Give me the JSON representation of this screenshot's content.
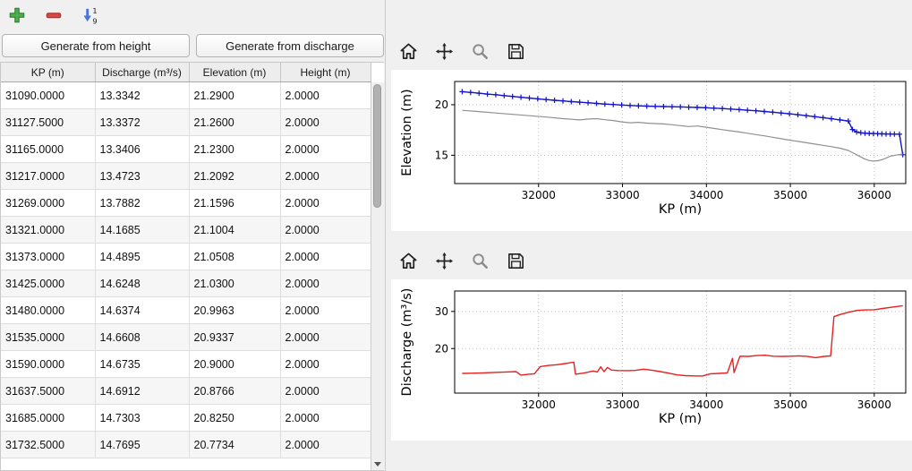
{
  "colors": {
    "window_bg": "#f0f0f0",
    "elevation_line": "#1414c8",
    "bed_line": "#909090",
    "discharge_line": "#e82020",
    "add_icon_green": "#4caf4c",
    "remove_icon_red": "#d84848",
    "sort_icon_blue": "#4a72d8"
  },
  "left_toolbar": {
    "icons": [
      "add-icon",
      "remove-icon",
      "sort-numeric-icon"
    ],
    "sort_top_digit": "1",
    "sort_bottom_digit": "9"
  },
  "buttons": {
    "generate_from_height": "Generate from height",
    "generate_from_discharge": "Generate from discharge"
  },
  "table": {
    "columns": [
      "KP (m)",
      "Discharge (m³/s)",
      "Elevation (m)",
      "Height (m)"
    ],
    "rows": [
      [
        "31090.0000",
        "13.3342",
        "21.2900",
        "2.0000"
      ],
      [
        "31127.5000",
        "13.3372",
        "21.2600",
        "2.0000"
      ],
      [
        "31165.0000",
        "13.3406",
        "21.2300",
        "2.0000"
      ],
      [
        "31217.0000",
        "13.4723",
        "21.2092",
        "2.0000"
      ],
      [
        "31269.0000",
        "13.7882",
        "21.1596",
        "2.0000"
      ],
      [
        "31321.0000",
        "14.1685",
        "21.1004",
        "2.0000"
      ],
      [
        "31373.0000",
        "14.4895",
        "21.0508",
        "2.0000"
      ],
      [
        "31425.0000",
        "14.6248",
        "21.0300",
        "2.0000"
      ],
      [
        "31480.0000",
        "14.6374",
        "20.9963",
        "2.0000"
      ],
      [
        "31535.0000",
        "14.6608",
        "20.9337",
        "2.0000"
      ],
      [
        "31590.0000",
        "14.6735",
        "20.9000",
        "2.0000"
      ],
      [
        "31637.5000",
        "14.6912",
        "20.8766",
        "2.0000"
      ],
      [
        "31685.0000",
        "14.7303",
        "20.8250",
        "2.0000"
      ],
      [
        "31732.5000",
        "14.7695",
        "20.7734",
        "2.0000"
      ]
    ]
  },
  "mpl_toolbar": {
    "icons": [
      "home-icon",
      "pan-icon",
      "zoom-icon",
      "save-icon"
    ]
  },
  "chart_data": [
    {
      "type": "line",
      "title": "",
      "xlabel": "KP (m)",
      "ylabel": "Elevation (m)",
      "xlim": [
        31000,
        36375
      ],
      "ylim": [
        12.2,
        22.3
      ],
      "xticks": [
        32000,
        33000,
        34000,
        35000,
        36000
      ],
      "yticks": [
        15,
        20
      ],
      "grid": true,
      "legend": "none",
      "series": [
        {
          "name": "water-surface-elevation",
          "color": "#1414c8",
          "marker": "+",
          "line_width": 1.4,
          "points": [
            [
              31090,
              21.29
            ],
            [
              31190,
              21.22
            ],
            [
              31290,
              21.14
            ],
            [
              31390,
              21.05
            ],
            [
              31490,
              20.99
            ],
            [
              31590,
              20.9
            ],
            [
              31690,
              20.82
            ],
            [
              31790,
              20.74
            ],
            [
              31890,
              20.66
            ],
            [
              31990,
              20.58
            ],
            [
              32090,
              20.51
            ],
            [
              32190,
              20.44
            ],
            [
              32290,
              20.38
            ],
            [
              32390,
              20.31
            ],
            [
              32490,
              20.25
            ],
            [
              32590,
              20.19
            ],
            [
              32690,
              20.13
            ],
            [
              32790,
              20.07
            ],
            [
              32890,
              20.02
            ],
            [
              32990,
              19.97
            ],
            [
              33090,
              19.93
            ],
            [
              33190,
              19.89
            ],
            [
              33290,
              19.86
            ],
            [
              33390,
              19.84
            ],
            [
              33490,
              19.82
            ],
            [
              33590,
              19.8
            ],
            [
              33690,
              19.78
            ],
            [
              33790,
              19.76
            ],
            [
              33890,
              19.73
            ],
            [
              33990,
              19.7
            ],
            [
              34090,
              19.66
            ],
            [
              34190,
              19.62
            ],
            [
              34290,
              19.57
            ],
            [
              34390,
              19.52
            ],
            [
              34490,
              19.46
            ],
            [
              34590,
              19.4
            ],
            [
              34690,
              19.33
            ],
            [
              34790,
              19.26
            ],
            [
              34890,
              19.18
            ],
            [
              34990,
              19.1
            ],
            [
              35090,
              19.01
            ],
            [
              35190,
              18.92
            ],
            [
              35290,
              18.82
            ],
            [
              35390,
              18.72
            ],
            [
              35490,
              18.61
            ],
            [
              35590,
              18.5
            ],
            [
              35690,
              18.39
            ],
            [
              35740,
              17.55
            ],
            [
              35790,
              17.3
            ],
            [
              35840,
              17.22
            ],
            [
              35890,
              17.18
            ],
            [
              35940,
              17.16
            ],
            [
              35990,
              17.14
            ],
            [
              36040,
              17.13
            ],
            [
              36090,
              17.12
            ],
            [
              36140,
              17.11
            ],
            [
              36190,
              17.1
            ],
            [
              36240,
              17.09
            ],
            [
              36300,
              17.08
            ],
            [
              36340,
              15.05
            ]
          ]
        },
        {
          "name": "bed-elevation",
          "color": "#909090",
          "marker": null,
          "line_width": 1.2,
          "points": [
            [
              31090,
              19.45
            ],
            [
              31290,
              19.32
            ],
            [
              31490,
              19.18
            ],
            [
              31690,
              19.05
            ],
            [
              31890,
              18.92
            ],
            [
              32090,
              18.78
            ],
            [
              32290,
              18.62
            ],
            [
              32490,
              18.5
            ],
            [
              32590,
              18.58
            ],
            [
              32690,
              18.62
            ],
            [
              32790,
              18.52
            ],
            [
              32890,
              18.44
            ],
            [
              32990,
              18.3
            ],
            [
              33090,
              18.22
            ],
            [
              33190,
              18.26
            ],
            [
              33290,
              18.18
            ],
            [
              33390,
              18.14
            ],
            [
              33490,
              18.1
            ],
            [
              33590,
              18.02
            ],
            [
              33690,
              17.93
            ],
            [
              33790,
              17.84
            ],
            [
              33890,
              17.9
            ],
            [
              33990,
              17.78
            ],
            [
              34090,
              17.66
            ],
            [
              34190,
              17.53
            ],
            [
              34290,
              17.42
            ],
            [
              34390,
              17.3
            ],
            [
              34490,
              17.18
            ],
            [
              34590,
              17.05
            ],
            [
              34690,
              16.92
            ],
            [
              34790,
              16.78
            ],
            [
              34890,
              16.64
            ],
            [
              34990,
              16.5
            ],
            [
              35090,
              16.37
            ],
            [
              35190,
              16.24
            ],
            [
              35290,
              16.11
            ],
            [
              35390,
              15.98
            ],
            [
              35490,
              15.85
            ],
            [
              35590,
              15.7
            ],
            [
              35690,
              15.48
            ],
            [
              35790,
              15.05
            ],
            [
              35890,
              14.62
            ],
            [
              35940,
              14.48
            ],
            [
              35990,
              14.42
            ],
            [
              36040,
              14.46
            ],
            [
              36090,
              14.56
            ],
            [
              36140,
              14.72
            ],
            [
              36190,
              14.9
            ],
            [
              36260,
              15.02
            ],
            [
              36340,
              15.12
            ]
          ]
        }
      ]
    },
    {
      "type": "line",
      "title": "",
      "xlabel": "KP (m)",
      "ylabel": "Discharge (m³/s)",
      "xlim": [
        31000,
        36375
      ],
      "ylim": [
        8,
        35.5
      ],
      "xticks": [
        32000,
        33000,
        34000,
        35000,
        36000
      ],
      "yticks": [
        20,
        30
      ],
      "grid": true,
      "legend": "none",
      "series": [
        {
          "name": "discharge",
          "color": "#e82020",
          "marker": null,
          "line_width": 1.4,
          "points": [
            [
              31090,
              13.3
            ],
            [
              31200,
              13.35
            ],
            [
              31350,
              13.45
            ],
            [
              31500,
              13.6
            ],
            [
              31650,
              13.72
            ],
            [
              31730,
              13.78
            ],
            [
              31790,
              12.85
            ],
            [
              31870,
              13.05
            ],
            [
              31950,
              13.2
            ],
            [
              32020,
              15.15
            ],
            [
              32120,
              15.45
            ],
            [
              32220,
              15.65
            ],
            [
              32320,
              15.95
            ],
            [
              32420,
              16.35
            ],
            [
              32440,
              13.1
            ],
            [
              32550,
              13.45
            ],
            [
              32650,
              13.95
            ],
            [
              32700,
              13.7
            ],
            [
              32740,
              15.1
            ],
            [
              32780,
              13.8
            ],
            [
              32820,
              14.9
            ],
            [
              32870,
              14.2
            ],
            [
              32950,
              14.08
            ],
            [
              33050,
              14.05
            ],
            [
              33150,
              14.1
            ],
            [
              33250,
              14.45
            ],
            [
              33350,
              14.18
            ],
            [
              33450,
              13.8
            ],
            [
              33550,
              13.38
            ],
            [
              33650,
              12.9
            ],
            [
              33750,
              12.7
            ],
            [
              33850,
              12.62
            ],
            [
              33950,
              12.6
            ],
            [
              34050,
              13.22
            ],
            [
              34150,
              13.3
            ],
            [
              34250,
              13.45
            ],
            [
              34310,
              17.35
            ],
            [
              34330,
              13.55
            ],
            [
              34400,
              17.95
            ],
            [
              34500,
              17.9
            ],
            [
              34600,
              18.1
            ],
            [
              34700,
              18.2
            ],
            [
              34800,
              17.95
            ],
            [
              34900,
              17.88
            ],
            [
              35000,
              17.95
            ],
            [
              35100,
              18.0
            ],
            [
              35200,
              17.92
            ],
            [
              35300,
              17.55
            ],
            [
              35400,
              17.88
            ],
            [
              35480,
              18.0
            ],
            [
              35520,
              28.6
            ],
            [
              35600,
              29.2
            ],
            [
              35700,
              29.8
            ],
            [
              35800,
              30.3
            ],
            [
              35900,
              30.4
            ],
            [
              36000,
              30.45
            ],
            [
              36100,
              30.8
            ],
            [
              36200,
              31.1
            ],
            [
              36340,
              31.55
            ]
          ]
        }
      ]
    }
  ]
}
